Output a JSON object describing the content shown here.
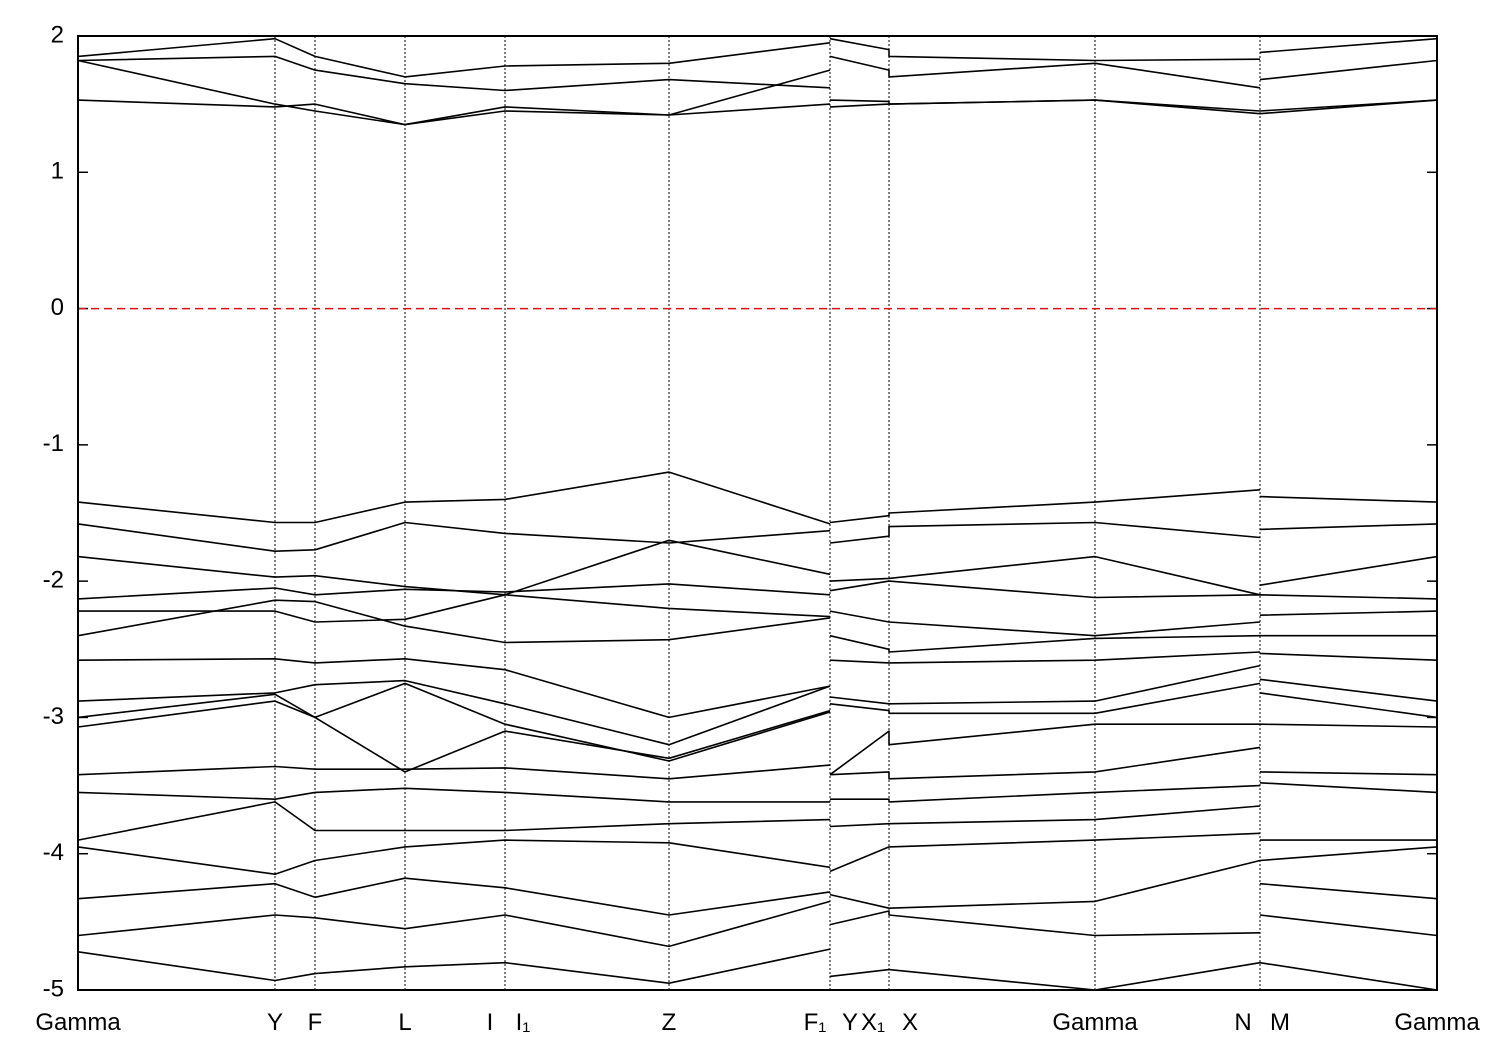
{
  "chart_data": {
    "type": "line",
    "color": "#000000",
    "categories": [
      "Gamma",
      "Y",
      "F",
      "L",
      "I",
      "I₁",
      "Z",
      "F₁",
      "Y",
      "X₁",
      "X",
      "Gamma",
      "N",
      "M",
      "Gamma"
    ],
    "ylim": [
      -5,
      2
    ],
    "yticks": [
      2,
      1,
      0,
      -1,
      -2,
      -3,
      -4,
      -5
    ],
    "hline": {
      "value": 0,
      "color": "#dd1111",
      "style": "dashed"
    },
    "series": [
      {
        "values": [
          1.53,
          1.48,
          1.5,
          1.35,
          1.45,
          1.45,
          1.42,
          1.5,
          1.48,
          1.5,
          1.5,
          1.53,
          1.43,
          1.43,
          1.53
        ]
      },
      {
        "values": [
          1.82,
          1.5,
          1.45,
          1.35,
          1.48,
          1.48,
          1.42,
          1.75,
          1.53,
          1.52,
          1.5,
          1.53,
          1.45,
          1.45,
          1.53
        ]
      },
      {
        "values": [
          1.82,
          1.85,
          1.75,
          1.65,
          1.6,
          1.6,
          1.68,
          1.62,
          1.85,
          1.75,
          1.7,
          1.8,
          1.62,
          1.68,
          1.82
        ]
      },
      {
        "values": [
          1.85,
          1.98,
          1.85,
          1.7,
          1.78,
          1.78,
          1.8,
          1.95,
          1.98,
          1.9,
          1.85,
          1.82,
          1.83,
          1.88,
          1.98
        ]
      },
      {
        "values": [
          -1.42,
          -1.57,
          -1.57,
          -1.42,
          -1.4,
          -1.4,
          -1.2,
          -1.58,
          -1.57,
          -1.52,
          -1.5,
          -1.42,
          -1.33,
          -1.38,
          -1.42
        ]
      },
      {
        "values": [
          -1.58,
          -1.78,
          -1.77,
          -1.57,
          -1.65,
          -1.65,
          -1.72,
          -1.63,
          -1.72,
          -1.67,
          -1.6,
          -1.57,
          -1.68,
          -1.62,
          -1.58
        ]
      },
      {
        "values": [
          -1.82,
          -1.97,
          -1.96,
          -2.04,
          -2.1,
          -2.1,
          -1.7,
          -1.95,
          -2.0,
          -1.98,
          -1.98,
          -1.82,
          -2.1,
          -2.03,
          -1.82
        ]
      },
      {
        "values": [
          -2.13,
          -2.05,
          -2.1,
          -2.06,
          -2.08,
          -2.08,
          -2.02,
          -2.1,
          -2.07,
          -2.0,
          -2.0,
          -2.12,
          -2.1,
          -2.1,
          -2.13
        ]
      },
      {
        "values": [
          -2.22,
          -2.22,
          -2.3,
          -2.28,
          -2.1,
          -2.1,
          -2.2,
          -2.26,
          -2.22,
          -2.3,
          -2.3,
          -2.4,
          -2.3,
          -2.25,
          -2.22
        ]
      },
      {
        "values": [
          -2.4,
          -2.14,
          -2.15,
          -2.33,
          -2.45,
          -2.45,
          -2.43,
          -2.27,
          -2.4,
          -2.5,
          -2.52,
          -2.42,
          -2.4,
          -2.4,
          -2.4
        ]
      },
      {
        "values": [
          -2.58,
          -2.57,
          -2.6,
          -2.57,
          -2.65,
          -2.65,
          -3.0,
          -2.77,
          -2.58,
          -2.6,
          -2.6,
          -2.58,
          -2.52,
          -2.53,
          -2.58
        ]
      },
      {
        "values": [
          -2.88,
          -2.82,
          -2.76,
          -2.73,
          -2.9,
          -2.9,
          -3.2,
          -2.77,
          -2.85,
          -2.9,
          -2.9,
          -2.88,
          -2.62,
          -2.72,
          -2.88
        ]
      },
      {
        "values": [
          -3.0,
          -2.83,
          -3.0,
          -2.75,
          -3.05,
          -3.05,
          -3.32,
          -2.96,
          -2.9,
          -2.95,
          -2.97,
          -2.97,
          -2.75,
          -2.82,
          -3.0
        ]
      },
      {
        "values": [
          -3.07,
          -2.88,
          -3.0,
          -3.4,
          -3.1,
          -3.1,
          -3.3,
          -2.95,
          -3.42,
          -3.1,
          -3.2,
          -3.05,
          -3.05,
          -3.05,
          -3.07
        ]
      },
      {
        "values": [
          -3.42,
          -3.36,
          -3.38,
          -3.38,
          -3.37,
          -3.37,
          -3.45,
          -3.35,
          -3.42,
          -3.4,
          -3.45,
          -3.4,
          -3.22,
          -3.4,
          -3.42
        ]
      },
      {
        "values": [
          -3.55,
          -3.6,
          -3.55,
          -3.52,
          -3.55,
          -3.55,
          -3.62,
          -3.62,
          -3.6,
          -3.6,
          -3.62,
          -3.55,
          -3.5,
          -3.48,
          -3.55
        ]
      },
      {
        "values": [
          -3.9,
          -3.62,
          -3.83,
          -3.83,
          -3.83,
          -3.83,
          -3.78,
          -3.75,
          -3.8,
          -3.78,
          -3.78,
          -3.75,
          -3.65,
          -3.9,
          -3.9
        ]
      },
      {
        "values": [
          -3.95,
          -4.15,
          -4.05,
          -3.95,
          -3.9,
          -3.9,
          -3.92,
          -4.1,
          -4.13,
          -3.95,
          -3.95,
          -3.9,
          -3.85,
          -4.05,
          -3.95
        ]
      },
      {
        "values": [
          -4.33,
          -4.22,
          -4.32,
          -4.18,
          -4.25,
          -4.25,
          -4.45,
          -4.28,
          -4.3,
          -4.4,
          -4.4,
          -4.35,
          -4.05,
          -4.22,
          -4.33
        ]
      },
      {
        "values": [
          -4.6,
          -4.45,
          -4.47,
          -4.55,
          -4.45,
          -4.45,
          -4.68,
          -4.35,
          -4.52,
          -4.42,
          -4.45,
          -4.6,
          -4.58,
          -4.45,
          -4.6
        ]
      },
      {
        "values": [
          -4.72,
          -4.93,
          -4.88,
          -4.83,
          -4.8,
          -4.8,
          -4.95,
          -4.7,
          -4.9,
          -4.85,
          -4.85,
          -5.0,
          -4.8,
          -4.8,
          -5.0
        ]
      }
    ]
  }
}
